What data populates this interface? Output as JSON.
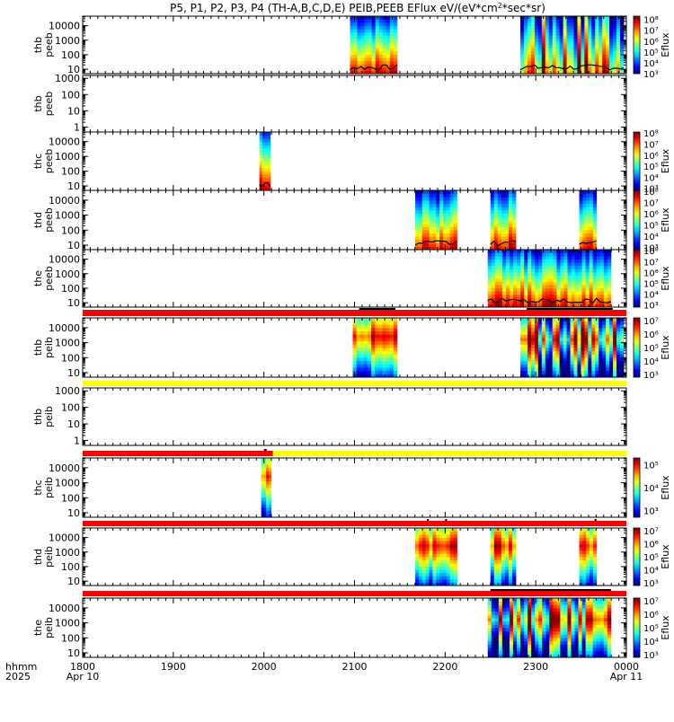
{
  "chart_data": {
    "type": "heatmap",
    "title": "P5, P1, P2, P3, P4 (TH-A,B,C,D,E) PEIB,PEEB EFlux eV/(eV*cm²*sec*sr)",
    "title_parts": {
      "pre": "P5, P1, P2, P3, P4 (TH-A,B,C,D,E) PEIB,PEEB EFlux eV/(eV*cm",
      "sup": "2",
      "post": "*sec*sr)"
    },
    "xlabel_row1": "hhmm",
    "xlabel_row2": "2025",
    "x_ticks": [
      {
        "label": "1800",
        "sub": "Apr 10"
      },
      {
        "label": "1900",
        "sub": ""
      },
      {
        "label": "2000",
        "sub": ""
      },
      {
        "label": "2100",
        "sub": ""
      },
      {
        "label": "2200",
        "sub": ""
      },
      {
        "label": "2300",
        "sub": ""
      },
      {
        "label": "0000",
        "sub": "Apr 11"
      }
    ],
    "x_range_hours": [
      18,
      24
    ],
    "colorbar_label": "Eflux",
    "panels": [
      {
        "label1": "thb",
        "label2": "peeb",
        "yticks": [
          "10000",
          "1000",
          "100",
          "10"
        ],
        "ylog": [
          5,
          45000
        ],
        "colorbar": [
          "10⁸",
          "10⁷",
          "10⁶",
          "10⁵",
          "10⁴",
          "10³"
        ],
        "cb_range": [
          3,
          8.3
        ],
        "segments": [
          {
            "start": 20.95,
            "end": 21.47,
            "style": "warm"
          },
          {
            "start": 22.83,
            "end": 23.97,
            "style": "patchy"
          }
        ],
        "spec_line": true
      },
      {
        "label1": "thb",
        "label2": "peeb",
        "yticks": [
          "1000",
          "100",
          "10",
          "1"
        ],
        "ylog": [
          0.5,
          1500
        ],
        "colorbar": [],
        "segments": [],
        "spec_line": false
      },
      {
        "label1": "thc",
        "label2": "peeb",
        "yticks": [
          "10000",
          "1000",
          "100",
          "10"
        ],
        "ylog": [
          5,
          45000
        ],
        "colorbar": [
          "10⁸",
          "10⁷",
          "10⁶",
          "10⁵",
          "10⁴",
          "10³"
        ],
        "cb_range": [
          2.8,
          8.1
        ],
        "segments": [
          {
            "start": 19.95,
            "end": 20.07,
            "style": "warm"
          }
        ],
        "spec_line": true
      },
      {
        "label1": "thd",
        "label2": "peeb",
        "yticks": [
          "10000",
          "1000",
          "100",
          "10"
        ],
        "ylog": [
          5,
          45000
        ],
        "colorbar": [
          "10⁸",
          "10⁷",
          "10⁶",
          "10⁵",
          "10⁴",
          "10³"
        ],
        "cb_range": [
          2.8,
          8.1
        ],
        "segments": [
          {
            "start": 21.67,
            "end": 22.13,
            "style": "warm"
          },
          {
            "start": 22.5,
            "end": 22.78,
            "style": "warm"
          },
          {
            "start": 23.48,
            "end": 23.67,
            "style": "warm"
          }
        ],
        "spec_line": true
      },
      {
        "label1": "the",
        "label2": "peeb",
        "yticks": [
          "10000",
          "1000",
          "100",
          "10"
        ],
        "ylog": [
          5,
          45000
        ],
        "colorbar": [
          "10⁸",
          "10⁷",
          "10⁶",
          "10⁵",
          "10⁴",
          "10³"
        ],
        "cb_range": [
          2.8,
          8.1
        ],
        "segments": [
          {
            "start": 22.47,
            "end": 23.83,
            "style": "warm"
          }
        ],
        "spec_line": true
      },
      {
        "label1": "thb",
        "label2": "peib",
        "yticks": [
          "10000",
          "1000",
          "100",
          "10"
        ],
        "ylog": [
          5,
          45000
        ],
        "colorbar": [
          "10⁷",
          "10⁶",
          "10⁵",
          "10⁴",
          "10³"
        ],
        "cb_range": [
          2.8,
          7.2
        ],
        "segments": [
          {
            "start": 20.98,
            "end": 21.47,
            "style": "ion"
          },
          {
            "start": 22.83,
            "end": 23.97,
            "style": "ionpatchy"
          }
        ],
        "spec_line": false
      },
      {
        "label1": "thb",
        "label2": "peib",
        "yticks": [
          "1000",
          "100",
          "10",
          "1"
        ],
        "ylog": [
          0.5,
          1500
        ],
        "colorbar": [],
        "segments": [],
        "spec_line": false
      },
      {
        "label1": "thc",
        "label2": "peib",
        "yticks": [
          "10000",
          "1000",
          "100",
          "10"
        ],
        "ylog": [
          5,
          45000
        ],
        "colorbar": [
          "10⁵",
          "10⁴",
          "10³"
        ],
        "cb_range": [
          2.7,
          5.3
        ],
        "segments": [
          {
            "start": 19.97,
            "end": 20.08,
            "style": "ion"
          }
        ],
        "spec_line": false
      },
      {
        "label1": "thd",
        "label2": "peib",
        "yticks": [
          "10000",
          "1000",
          "100",
          "10"
        ],
        "ylog": [
          5,
          45000
        ],
        "colorbar": [
          "10⁷",
          "10⁶",
          "10⁵",
          "10⁴",
          "10³"
        ],
        "cb_range": [
          2.8,
          7.2
        ],
        "segments": [
          {
            "start": 21.67,
            "end": 22.13,
            "style": "ion"
          },
          {
            "start": 22.5,
            "end": 22.78,
            "style": "ion"
          },
          {
            "start": 23.48,
            "end": 23.67,
            "style": "ion"
          }
        ],
        "spec_line": false
      },
      {
        "label1": "the",
        "label2": "peib",
        "yticks": [
          "10000",
          "1000",
          "100",
          "10"
        ],
        "ylog": [
          5,
          45000
        ],
        "colorbar": [
          "10⁷",
          "10⁶",
          "10⁵",
          "10⁴",
          "10³"
        ],
        "cb_range": [
          2.8,
          7.2
        ],
        "segments": [
          {
            "start": 22.47,
            "end": 23.83,
            "style": "ionpatchy"
          }
        ],
        "spec_line": false
      }
    ],
    "mode_bars": [
      {
        "after_panel": 4,
        "segments": [
          {
            "start": 18.0,
            "end": 24.0,
            "color": "#ff0000"
          }
        ],
        "marks": [
          {
            "start": 21.05,
            "end": 21.45
          },
          {
            "start": 22.9,
            "end": 23.85
          }
        ]
      },
      {
        "after_panel": 5,
        "segments": [
          {
            "start": 18.0,
            "end": 24.0,
            "color": "#ffff00"
          }
        ],
        "marks": []
      },
      {
        "after_panel": 6,
        "segments": [
          {
            "start": 18.0,
            "end": 20.1,
            "color": "#ff0000"
          },
          {
            "start": 20.1,
            "end": 24.0,
            "color": "#ffff00"
          }
        ],
        "marks": [
          {
            "start": 20.0,
            "end": 20.03
          }
        ]
      },
      {
        "after_panel": 7,
        "segments": [
          {
            "start": 18.0,
            "end": 24.0,
            "color": "#ff0000"
          }
        ],
        "marks": [
          {
            "start": 21.8,
            "end": 21.82
          },
          {
            "start": 22.0,
            "end": 22.02
          },
          {
            "start": 23.65,
            "end": 23.67
          }
        ]
      },
      {
        "after_panel": 8,
        "segments": [
          {
            "start": 18.0,
            "end": 24.0,
            "color": "#ff0000"
          }
        ],
        "marks": [
          {
            "start": 22.5,
            "end": 23.83
          }
        ]
      }
    ]
  }
}
